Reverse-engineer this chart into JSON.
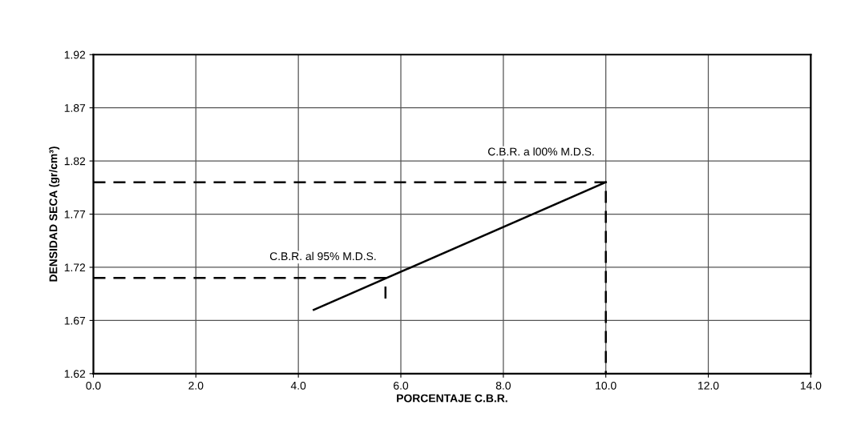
{
  "chart_data": {
    "type": "line",
    "xlabel": "PORCENTAJE C.B.R.",
    "ylabel": "DENSIDAD SECA (gr/cm³)",
    "series": [
      {
        "x": [
          4.3,
          10.0
        ],
        "values": [
          1.68,
          1.8
        ],
        "color": "#000000",
        "line_style": "solid"
      },
      {
        "x": [
          0.0,
          10.0,
          10.0
        ],
        "values": [
          1.8,
          1.8,
          1.62
        ],
        "color": "#000000",
        "line_style": "dashed"
      },
      {
        "x": [
          0.0,
          5.7,
          5.7
        ],
        "values": [
          1.71,
          1.71,
          1.69
        ],
        "color": "#000000",
        "line_style": "dashed"
      }
    ],
    "xlim": [
      0,
      14
    ],
    "ylim": [
      1.62,
      1.92
    ],
    "xticks": [
      {
        "value": 0,
        "label": "0.0"
      },
      {
        "value": 2,
        "label": "2.0"
      },
      {
        "value": 4,
        "label": "4.0"
      },
      {
        "value": 6,
        "label": "6.0"
      },
      {
        "value": 8,
        "label": "8.0"
      },
      {
        "value": 10,
        "label": "10.0"
      },
      {
        "value": 12,
        "label": "12.0"
      },
      {
        "value": 14,
        "label": "14.0"
      }
    ],
    "yticks": [
      1.62,
      1.67,
      1.72,
      1.77,
      1.82,
      1.87,
      1.92
    ],
    "grid": true,
    "marker": "none",
    "annotations": [
      {
        "text": "C.B.R. a l00% M.D.S.",
        "x": 10.0,
        "y": 1.8
      },
      {
        "text": "C.B.R. al 95% M.D.S.",
        "x": 5.7,
        "y": 1.71
      }
    ]
  }
}
